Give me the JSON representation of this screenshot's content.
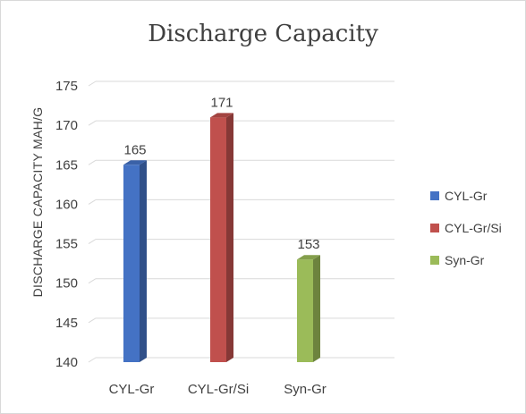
{
  "chart_data": {
    "type": "bar",
    "title": "Discharge Capacity",
    "ylabel": "DISCHARGE CAPACITY MAH/G",
    "xlabel": "",
    "categories": [
      "CYL-Gr",
      "CYL-Gr/Si",
      "Syn-Gr"
    ],
    "values": [
      165,
      171,
      153
    ],
    "colors": [
      "#4472c4",
      "#c0504d",
      "#9bbb59"
    ],
    "ylim": [
      140,
      175
    ],
    "yticks": [
      140,
      145,
      150,
      155,
      160,
      165,
      170,
      175
    ],
    "grid": true,
    "legend_position": "right",
    "legend": [
      "CYL-Gr",
      "CYL-Gr/Si",
      "Syn-Gr"
    ]
  }
}
